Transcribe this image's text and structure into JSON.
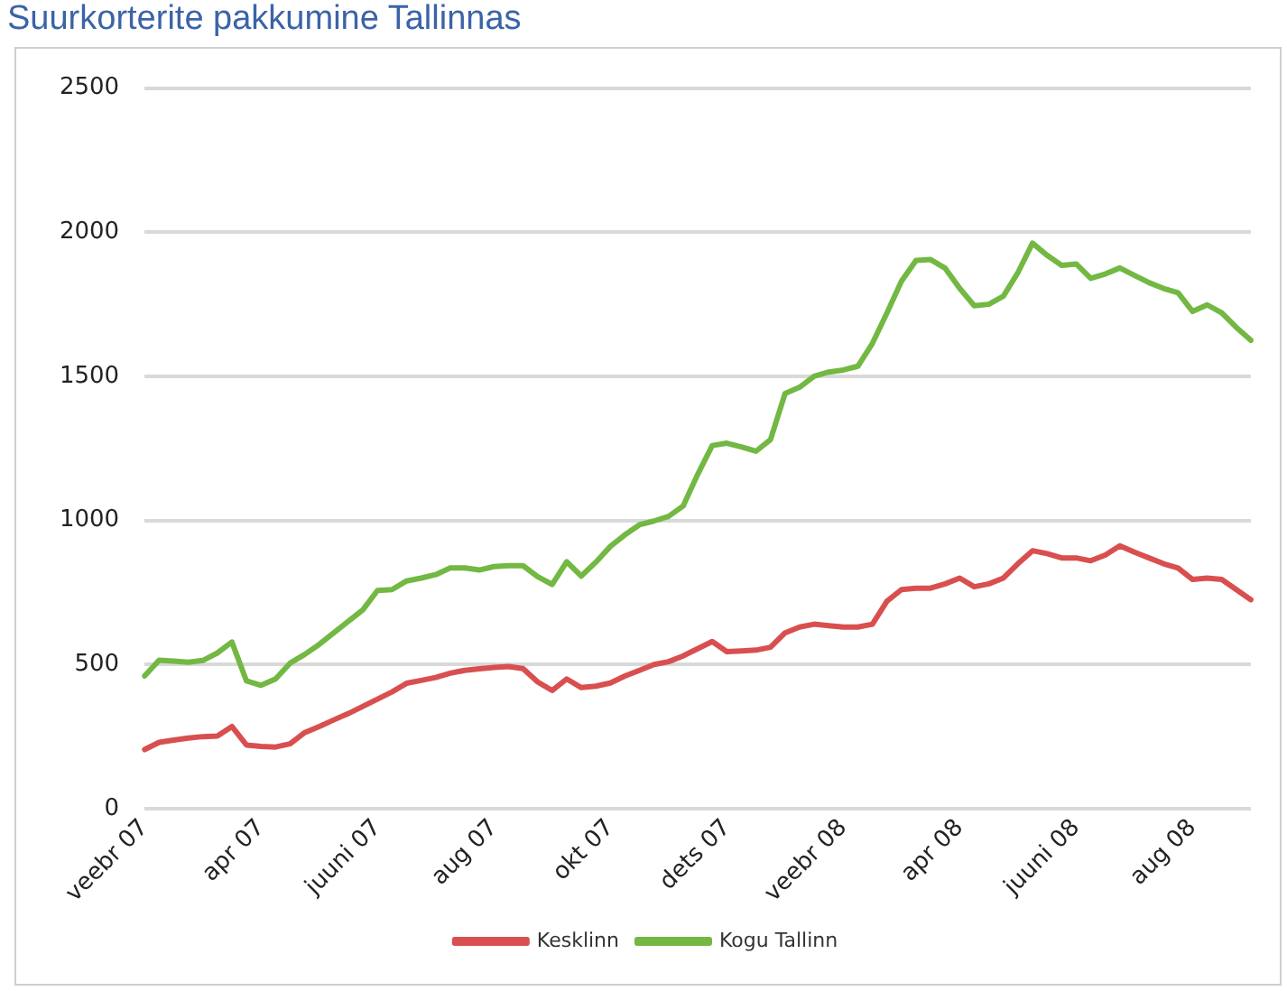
{
  "chart_data": {
    "type": "line",
    "title": "Suurkorterite pakkumine Tallinnas",
    "categories": [
      "veebr 07",
      null,
      null,
      null,
      null,
      null,
      null,
      null,
      "apr 07",
      null,
      null,
      null,
      null,
      null,
      null,
      null,
      "juuni 07",
      null,
      null,
      null,
      null,
      null,
      null,
      null,
      "aug 07",
      null,
      null,
      null,
      null,
      null,
      null,
      null,
      "okt 07",
      null,
      null,
      null,
      null,
      null,
      null,
      null,
      "dets 07",
      null,
      null,
      null,
      null,
      null,
      null,
      null,
      "veebr 08",
      null,
      null,
      null,
      null,
      null,
      null,
      null,
      "apr 08",
      null,
      null,
      null,
      null,
      null,
      null,
      null,
      "juuni 08",
      null,
      null,
      null,
      null,
      null,
      null,
      null,
      "aug 08",
      null,
      null,
      null,
      null
    ],
    "series": [
      {
        "name": "Kesklinn",
        "color": "#d94f4f",
        "values": [
          205,
          230,
          238,
          245,
          250,
          252,
          285,
          221,
          216,
          214,
          225,
          264,
          285,
          308,
          330,
          355,
          380,
          405,
          435,
          445,
          455,
          470,
          480,
          485,
          490,
          493,
          486,
          440,
          410,
          450,
          420,
          425,
          436,
          460,
          480,
          500,
          510,
          530,
          555,
          580,
          545,
          547,
          550,
          560,
          610,
          630,
          640,
          635,
          630,
          630,
          640,
          720,
          760,
          765,
          765,
          780,
          800,
          770,
          780,
          800,
          850,
          895,
          885,
          870,
          870,
          860,
          880,
          912,
          890,
          870,
          850,
          835,
          795,
          800,
          795,
          760,
          725
        ]
      },
      {
        "name": "Kogu Tallinn",
        "color": "#72b843",
        "values": [
          460,
          515,
          512,
          508,
          514,
          540,
          578,
          443,
          428,
          450,
          505,
          535,
          570,
          610,
          650,
          690,
          757,
          760,
          790,
          800,
          812,
          835,
          835,
          828,
          840,
          843,
          843,
          805,
          778,
          857,
          807,
          855,
          910,
          950,
          985,
          998,
          1014,
          1050,
          1160,
          1260,
          1268,
          1255,
          1240,
          1280,
          1440,
          1462,
          1500,
          1515,
          1522,
          1535,
          1614,
          1720,
          1830,
          1902,
          1905,
          1875,
          1805,
          1745,
          1750,
          1778,
          1860,
          1962,
          1920,
          1885,
          1890,
          1840,
          1855,
          1876,
          1850,
          1825,
          1805,
          1790,
          1725,
          1748,
          1720,
          1670,
          1625
        ]
      }
    ],
    "ylim": [
      0,
      2500
    ],
    "yticks": [
      0,
      500,
      1000,
      1500,
      2000,
      2500
    ],
    "grid": "y",
    "legend": "bottom",
    "marker": "none",
    "line_style": "solid"
  }
}
